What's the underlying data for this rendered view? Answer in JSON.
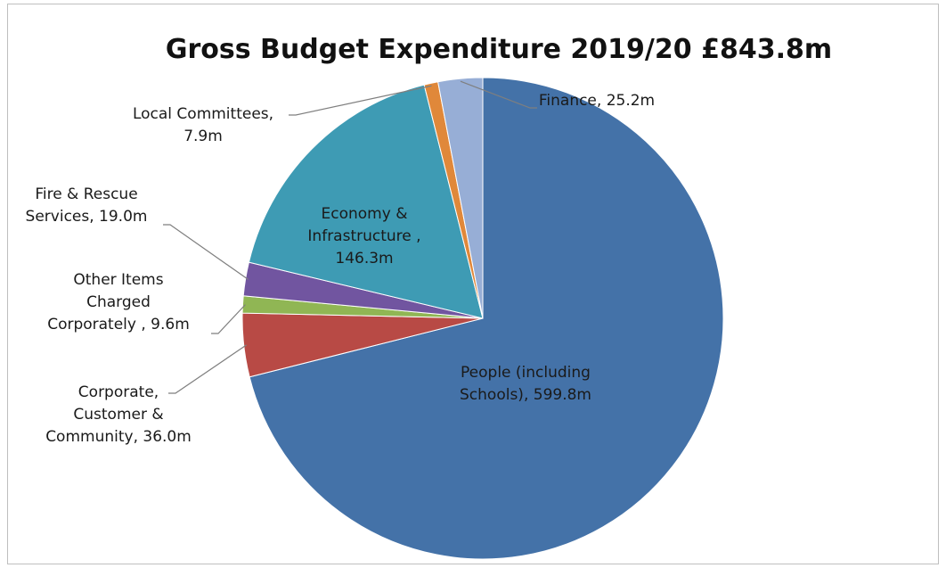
{
  "chart_data": {
    "type": "pie",
    "title": "Gross Budget Expenditure 2019/20 £843.8m",
    "slices": [
      {
        "lines": [
          "People (including",
          "Schools), 599.8m"
        ],
        "value": 599.8,
        "color": "#4472A8"
      },
      {
        "lines": [
          "Corporate,",
          "Customer &",
          "Community, 36.0m"
        ],
        "value": 36.0,
        "color": "#B84A45"
      },
      {
        "lines": [
          "Other Items",
          "Charged",
          "Corporately , 9.6m"
        ],
        "value": 9.6,
        "color": "#90B654"
      },
      {
        "lines": [
          "Fire & Rescue",
          "Services, 19.0m"
        ],
        "value": 19.0,
        "color": "#7155A0"
      },
      {
        "lines": [
          "Economy &",
          "Infrastructure ,",
          "146.3m"
        ],
        "value": 146.3,
        "color": "#3E9BB4"
      },
      {
        "lines": [
          "Local Committees,",
          "7.9m"
        ],
        "value": 7.9,
        "color": "#E0883A"
      },
      {
        "lines": [
          "Finance, 25.2m"
        ],
        "value": 25.2,
        "color": "#97AED6"
      }
    ]
  }
}
